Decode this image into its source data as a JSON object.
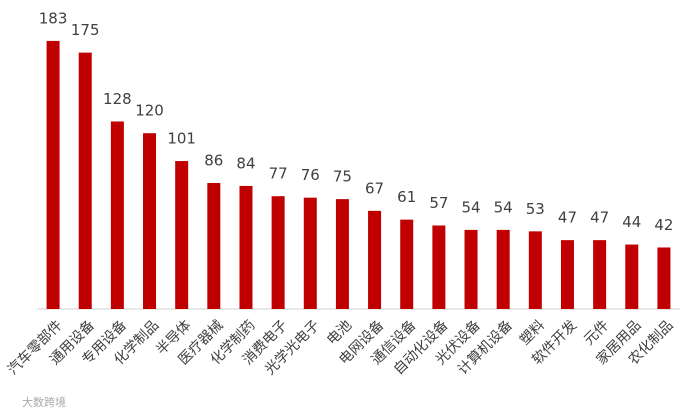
{
  "chart_data": {
    "type": "bar",
    "categories": [
      "汽车零部件",
      "通用设备",
      "专用设备",
      "化学制品",
      "半导体",
      "医疗器械",
      "化学制药",
      "消费电子",
      "光学光电子",
      "电池",
      "电网设备",
      "通信设备",
      "自动化设备",
      "光伏设备",
      "计算机设备",
      "塑料",
      "软件开发",
      "元件",
      "家居用品",
      "农化制品"
    ],
    "values": [
      183,
      175,
      128,
      120,
      101,
      86,
      84,
      77,
      76,
      75,
      67,
      61,
      57,
      54,
      54,
      53,
      47,
      47,
      44,
      42
    ],
    "color": "#c00000",
    "ylim": [
      0,
      200
    ],
    "watermark": "大数跨境"
  }
}
